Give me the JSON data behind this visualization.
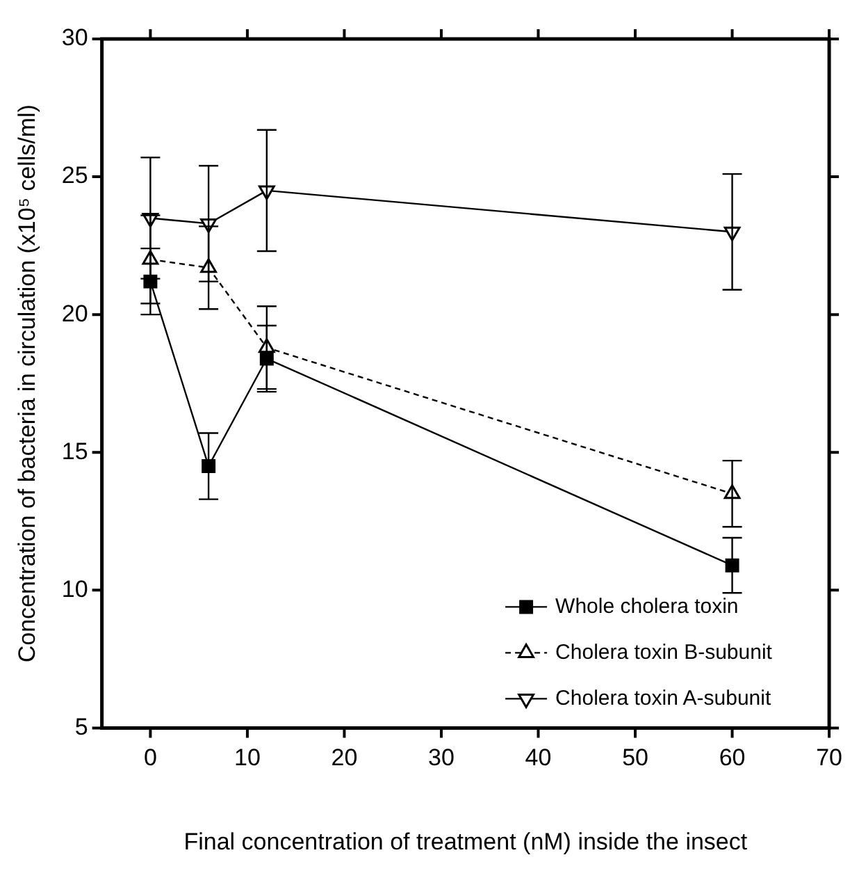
{
  "chart_data": {
    "type": "line",
    "xlabel": "Final concentration of treatment (nM) inside the insect",
    "ylabel": "Concentration of bacteria in circulation (x10⁵ cells/ml)",
    "xlim": [
      -5,
      70
    ],
    "xticks": [
      0,
      10,
      20,
      30,
      40,
      50,
      60,
      70
    ],
    "ylim": [
      5,
      30
    ],
    "yticks": [
      5,
      10,
      15,
      20,
      25,
      30
    ],
    "x": [
      0,
      6,
      12,
      60
    ],
    "grid": false,
    "legend": "bottom right",
    "series": [
      {
        "name": "Whole cholera toxin",
        "color": "#000000",
        "marker": "square",
        "line_style": "solid",
        "values": [
          21.2,
          14.5,
          18.4,
          10.9
        ],
        "errors": [
          1.2,
          1.2,
          1.2,
          1.0
        ]
      },
      {
        "name": "Cholera toxin B-subunit",
        "color": "#000000",
        "marker": "triangle",
        "line_style": "dashed",
        "values": [
          22.0,
          21.7,
          18.8,
          13.5
        ],
        "errors": [
          1.6,
          1.5,
          1.5,
          1.2
        ]
      },
      {
        "name": "Cholera toxin A-subunit",
        "color": "#000000",
        "marker": "triangle-down",
        "line_style": "solid",
        "values": [
          23.5,
          23.3,
          24.5,
          23.0
        ],
        "errors": [
          2.2,
          2.1,
          2.2,
          2.1
        ]
      }
    ]
  }
}
